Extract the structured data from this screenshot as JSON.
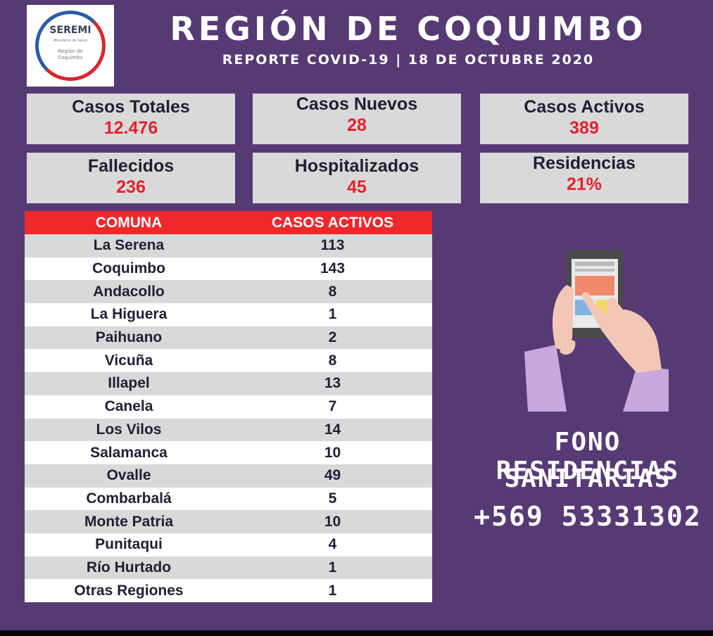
{
  "logo": {
    "title": "SEREMI",
    "subtitle": "Ministerio de Salud",
    "region_line1": "Región de",
    "region_line2": "Coquimbo"
  },
  "header": {
    "title": "REGIÓN DE COQUIMBO",
    "subtitle": "REPORTE COVID-19 | 18 DE OCTUBRE 2020"
  },
  "stats": [
    {
      "label": "Casos Totales",
      "value": "12.476"
    },
    {
      "label": "Casos Nuevos",
      "value": "28"
    },
    {
      "label": "Casos Activos",
      "value": "389"
    },
    {
      "label": "Fallecidos",
      "value": "236"
    },
    {
      "label": "Hospitalizados",
      "value": "45"
    },
    {
      "label": "Residencias",
      "value": "21%"
    }
  ],
  "table": {
    "headers": [
      "COMUNA",
      "CASOS ACTIVOS"
    ],
    "rows": [
      [
        "La Serena",
        "113"
      ],
      [
        "Coquimbo",
        "143"
      ],
      [
        "Andacollo",
        "8"
      ],
      [
        "La Higuera",
        "1"
      ],
      [
        "Paihuano",
        "2"
      ],
      [
        "Vicuña",
        "8"
      ],
      [
        "Illapel",
        "13"
      ],
      [
        "Canela",
        "7"
      ],
      [
        "Los Vilos",
        "14"
      ],
      [
        "Salamanca",
        "10"
      ],
      [
        "Ovalle",
        "49"
      ],
      [
        "Combarbalá",
        "5"
      ],
      [
        "Monte Patria",
        "10"
      ],
      [
        "Punitaqui",
        "4"
      ],
      [
        "Río Hurtado",
        "1"
      ],
      [
        "Otras Regiones",
        "1"
      ]
    ]
  },
  "contact": {
    "line1": "FONO RESIDENCIAS",
    "line2": "SANITARIAS",
    "phone": "+569 53331302"
  },
  "colors": {
    "background": "#563a74",
    "header_red": "#f0282c",
    "value_red": "#e3222c",
    "box_gray": "#d9d9d9"
  },
  "icons": [
    "hands-holding-phone-icon"
  ]
}
